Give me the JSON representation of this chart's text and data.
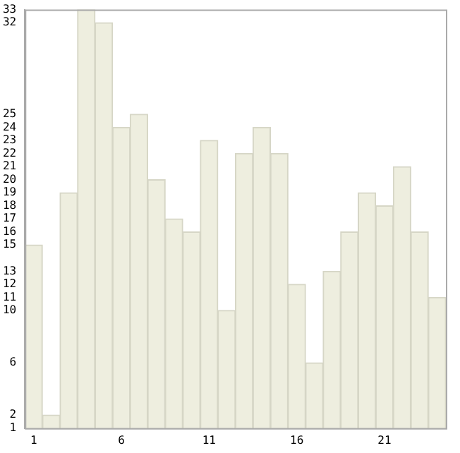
{
  "chart_data": {
    "type": "bar",
    "categories": [
      "1",
      null,
      null,
      null,
      null,
      "6",
      null,
      null,
      null,
      null,
      "11",
      null,
      null,
      null,
      null,
      "16",
      null,
      null,
      null,
      null,
      "21",
      null,
      null,
      null
    ],
    "values": [
      15,
      2,
      19,
      33,
      32,
      24,
      25,
      20,
      17,
      16,
      23,
      10,
      22,
      24,
      22,
      12,
      6,
      13,
      16,
      19,
      18,
      21,
      16,
      11
    ],
    "color": "#eeeedf",
    "ylim": [
      1,
      33
    ],
    "yticks": [
      1,
      2,
      6,
      10,
      11,
      12,
      13,
      15,
      16,
      17,
      18,
      19,
      20,
      21,
      22,
      23,
      24,
      25,
      32,
      33
    ],
    "grid": false,
    "legend": false
  }
}
